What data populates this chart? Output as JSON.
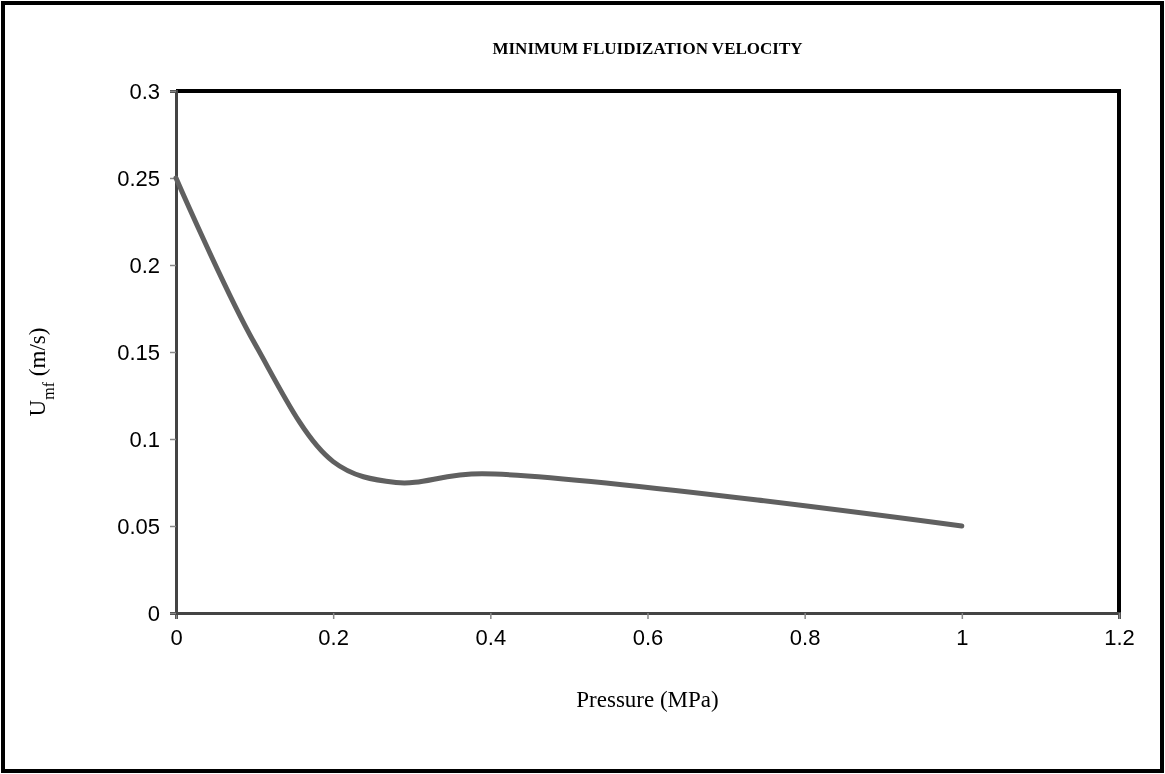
{
  "chart_data": {
    "type": "line",
    "title": "MINIMUM FLUIDIZATION VELOCITY",
    "xlabel": "Pressure (MPa)",
    "ylabel": "U$_{mf}$ (m/s)",
    "x": [
      0,
      0.1,
      0.2,
      0.28,
      0.39,
      1
    ],
    "series": [
      {
        "color": "#606060",
        "values": [
          0.25,
          0.155,
          0.087,
          0.075,
          0.08,
          0.05
        ]
      }
    ],
    "xlim": [
      0,
      1.2
    ],
    "xticks": [
      0,
      0.2,
      0.4,
      0.6,
      0.8,
      1,
      {
        "value": 1.2,
        "label": "1.2"
      }
    ],
    "ylim": [
      0,
      0.3
    ],
    "yticks": [
      0,
      0.05,
      0.1,
      0.15,
      0.2,
      0.25,
      0.3
    ],
    "grid": false,
    "marker": "none",
    "line_style": "solid"
  }
}
